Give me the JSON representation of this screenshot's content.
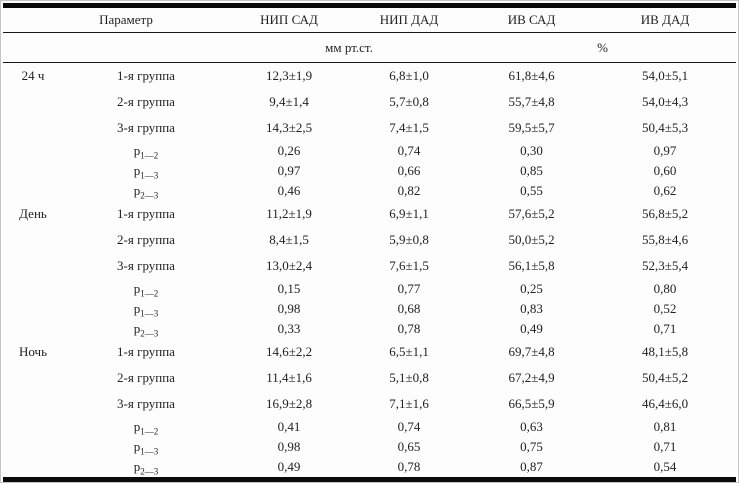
{
  "page": {
    "background": "#fdfdfd",
    "text_color": "#1f1f1f",
    "rule_color": "#0a0a0a"
  },
  "table": {
    "header": {
      "param": "Параметр",
      "cols": [
        "НИП САД",
        "НИП ДАД",
        "ИВ САД",
        "ИВ ДАД"
      ]
    },
    "units": {
      "pressure": "мм рт.ст.",
      "percent": "%"
    },
    "groups": [
      {
        "label": "24 ч",
        "rows": [
          {
            "param": "1-я группа",
            "values": [
              "12,3±1,9",
              "6,8±1,0",
              "61,8±4,6",
              "54,0±5,1"
            ]
          },
          {
            "param": "2-я группа",
            "values": [
              "9,4±1,4",
              "5,7±0,8",
              "55,7±4,8",
              "54,0±4,3"
            ]
          },
          {
            "param": "3-я группа",
            "values": [
              "14,3±2,5",
              "7,4±1,5",
              "59,5±5,7",
              "50,4±5,3"
            ]
          },
          {
            "param": "p",
            "sub": "1—2",
            "values": [
              "0,26",
              "0,74",
              "0,30",
              "0,97"
            ]
          },
          {
            "param": "p",
            "sub": "1—3",
            "values": [
              "0,97",
              "0,66",
              "0,85",
              "0,60"
            ]
          },
          {
            "param": "p",
            "sub": "2—3",
            "values": [
              "0,46",
              "0,82",
              "0,55",
              "0,62"
            ]
          }
        ]
      },
      {
        "label": "День",
        "rows": [
          {
            "param": "1-я группа",
            "values": [
              "11,2±1,9",
              "6,9±1,1",
              "57,6±5,2",
              "56,8±5,2"
            ]
          },
          {
            "param": "2-я группа",
            "values": [
              "8,4±1,5",
              "5,9±0,8",
              "50,0±5,2",
              "55,8±4,6"
            ]
          },
          {
            "param": "3-я группа",
            "values": [
              "13,0±2,4",
              "7,6±1,5",
              "56,1±5,8",
              "52,3±5,4"
            ]
          },
          {
            "param": "p",
            "sub": "1—2",
            "values": [
              "0,15",
              "0,77",
              "0,25",
              "0,80"
            ]
          },
          {
            "param": "p",
            "sub": "1—3",
            "values": [
              "0,98",
              "0,68",
              "0,83",
              "0,52"
            ]
          },
          {
            "param": "p",
            "sub": "2—3",
            "values": [
              "0,33",
              "0,78",
              "0,49",
              "0,71"
            ]
          }
        ]
      },
      {
        "label": "Ночь",
        "rows": [
          {
            "param": "1-я группа",
            "values": [
              "14,6±2,2",
              "6,5±1,1",
              "69,7±4,8",
              "48,1±5,8"
            ]
          },
          {
            "param": "2-я группа",
            "values": [
              "11,4±1,6",
              "5,1±0,8",
              "67,2±4,9",
              "50,4±5,2"
            ]
          },
          {
            "param": "3-я группа",
            "values": [
              "16,9±2,8",
              "7,1±1,6",
              "66,5±5,9",
              "46,4±6,0"
            ]
          },
          {
            "param": "p",
            "sub": "1—2",
            "values": [
              "0,41",
              "0,74",
              "0,63",
              "0,81"
            ]
          },
          {
            "param": "p",
            "sub": "1—3",
            "values": [
              "0,98",
              "0,65",
              "0,75",
              "0,71"
            ]
          },
          {
            "param": "p",
            "sub": "2—3",
            "values": [
              "0,49",
              "0,78",
              "0,87",
              "0,54"
            ]
          }
        ]
      }
    ]
  }
}
